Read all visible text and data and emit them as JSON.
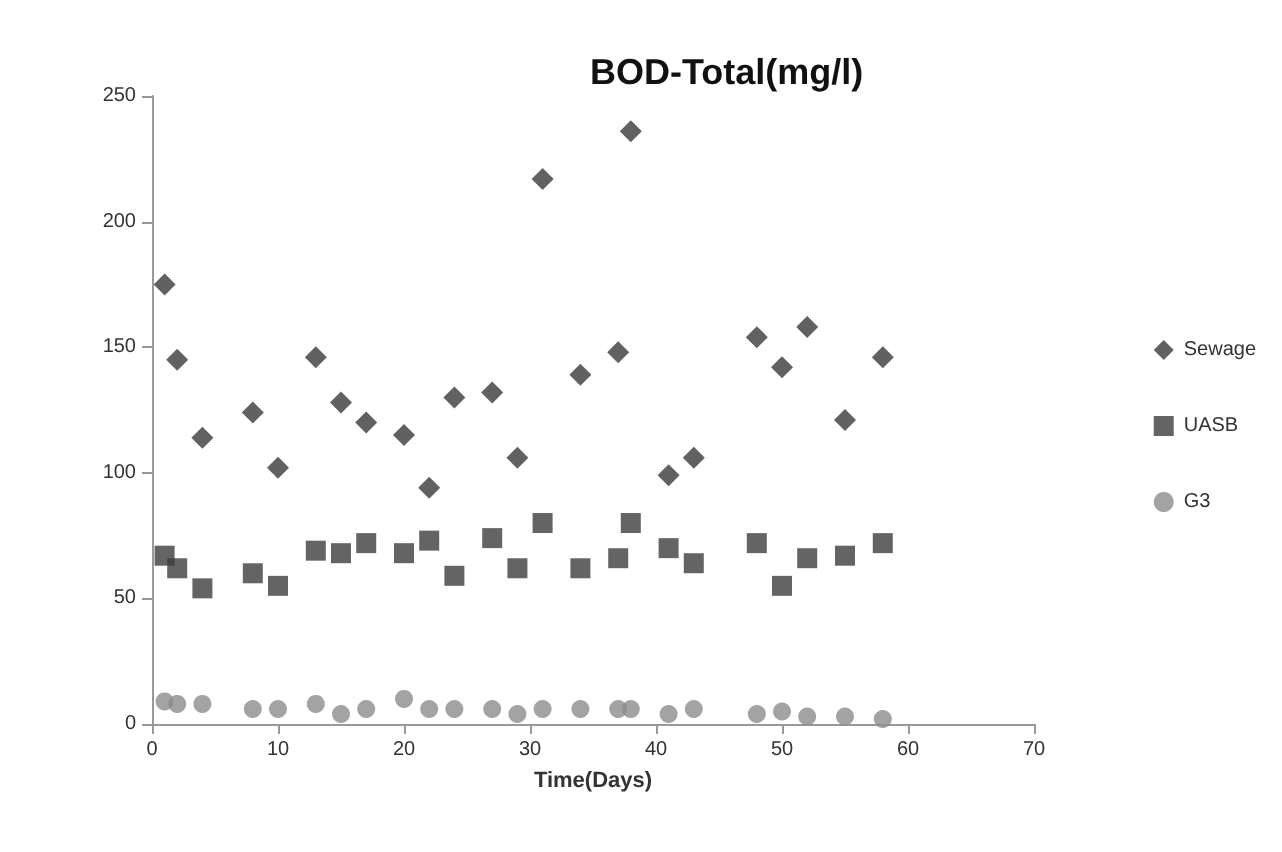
{
  "chart_data": {
    "type": "scatter",
    "title": "BOD-Total(mg/l)",
    "xlabel": "Time(Days)",
    "x": [
      1,
      2,
      4,
      8,
      10,
      13,
      15,
      17,
      20,
      22,
      24,
      27,
      29,
      31,
      34,
      37,
      38,
      41,
      43,
      48,
      50,
      52,
      55,
      58
    ],
    "xlim": [
      0,
      70
    ],
    "xticks": [
      0,
      10,
      20,
      30,
      40,
      50,
      60,
      70
    ],
    "ylim": [
      0,
      250
    ],
    "yticks": [
      0,
      50,
      100,
      150,
      200,
      250
    ],
    "grid": false,
    "legend": "right",
    "series": [
      {
        "name": "Sewage",
        "color": "#3a3a3a",
        "marker": "diamond",
        "values": [
          175,
          145,
          114,
          124,
          102,
          146,
          128,
          120,
          115,
          94,
          130,
          132,
          106,
          217,
          139,
          148,
          236,
          99,
          106,
          154,
          142,
          158,
          121,
          146
        ]
      },
      {
        "name": "UASB",
        "color": "#3d3d3d",
        "marker": "square",
        "values": [
          67,
          62,
          54,
          60,
          55,
          69,
          68,
          72,
          68,
          73,
          59,
          74,
          62,
          80,
          62,
          66,
          80,
          70,
          64,
          72,
          55,
          66,
          67,
          72
        ]
      },
      {
        "name": "G3",
        "color": "#8c8c8c",
        "marker": "circle",
        "values": [
          9,
          8,
          8,
          6,
          6,
          8,
          4,
          6,
          10,
          6,
          6,
          6,
          4,
          6,
          6,
          6,
          6,
          4,
          6,
          4,
          5,
          3,
          3,
          2
        ]
      }
    ]
  }
}
